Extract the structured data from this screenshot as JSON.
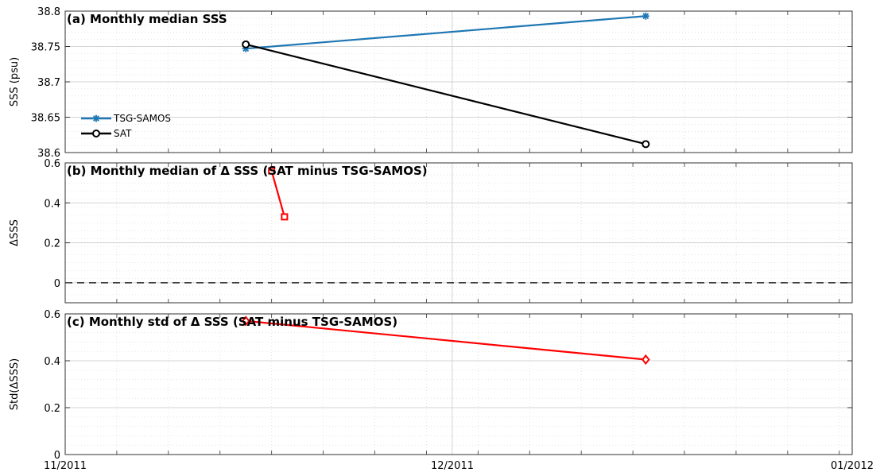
{
  "figure": {
    "x_tick_labels": [
      "11/2011",
      "12/2011",
      "01/2012"
    ]
  },
  "chart_data": [
    {
      "type": "line",
      "title": "(a) Monthly median SSS",
      "ylabel": "SSS (psu)",
      "xlabel": "",
      "xlim": [
        "2011-11-01",
        "2012-01-01"
      ],
      "ylim": [
        38.6,
        38.8
      ],
      "yticks": [
        38.6,
        38.65,
        38.7,
        38.75,
        38.8
      ],
      "ytick_labels": [
        "38.6",
        "38.65",
        "38.7",
        "38.75",
        "38.8"
      ],
      "grid": true,
      "legend_position": "lower-left",
      "series": [
        {
          "name": "TSG-SAMOS",
          "color": "#1f77b4",
          "marker": "asterisk",
          "x": [
            "2011-11-15",
            "2011-12-16"
          ],
          "y": [
            38.747,
            38.793
          ]
        },
        {
          "name": "SAT",
          "color": "#000000",
          "marker": "circle",
          "x": [
            "2011-11-15",
            "2011-12-16"
          ],
          "y": [
            38.753,
            38.612
          ]
        }
      ]
    },
    {
      "type": "line",
      "title": "(b) Monthly median of Δ SSS (SAT minus TSG-SAMOS)",
      "ylabel": "ΔSSS",
      "xlabel": "",
      "xlim": [
        "2011-11-01",
        "2012-01-01"
      ],
      "ylim": [
        -0.1,
        0.6
      ],
      "yticks": [
        0,
        0.2,
        0.4,
        0.6
      ],
      "ytick_labels": [
        "0",
        "0.2",
        "0.4",
        "0.6"
      ],
      "grid": true,
      "reference_line": {
        "y": 0,
        "style": "dashed"
      },
      "series": [
        {
          "color": "#ff0000",
          "marker": "square",
          "x": [
            "2011-11-17",
            "2011-11-18"
          ],
          "y": [
            0.56,
            0.33
          ]
        }
      ]
    },
    {
      "type": "line",
      "title": "(c) Monthly std of Δ SSS (SAT minus TSG-SAMOS)",
      "ylabel": "Std(ΔSSS)",
      "xlabel": "",
      "xlim": [
        "2011-11-01",
        "2012-01-01"
      ],
      "ylim": [
        0,
        0.6
      ],
      "yticks": [
        0,
        0.2,
        0.4,
        0.6
      ],
      "ytick_labels": [
        "0",
        "0.2",
        "0.4",
        "0.6"
      ],
      "grid": true,
      "series": [
        {
          "color": "#ff0000",
          "marker": "diamond",
          "x": [
            "2011-11-15",
            "2011-12-16"
          ],
          "y": [
            0.57,
            0.405
          ]
        }
      ]
    }
  ]
}
